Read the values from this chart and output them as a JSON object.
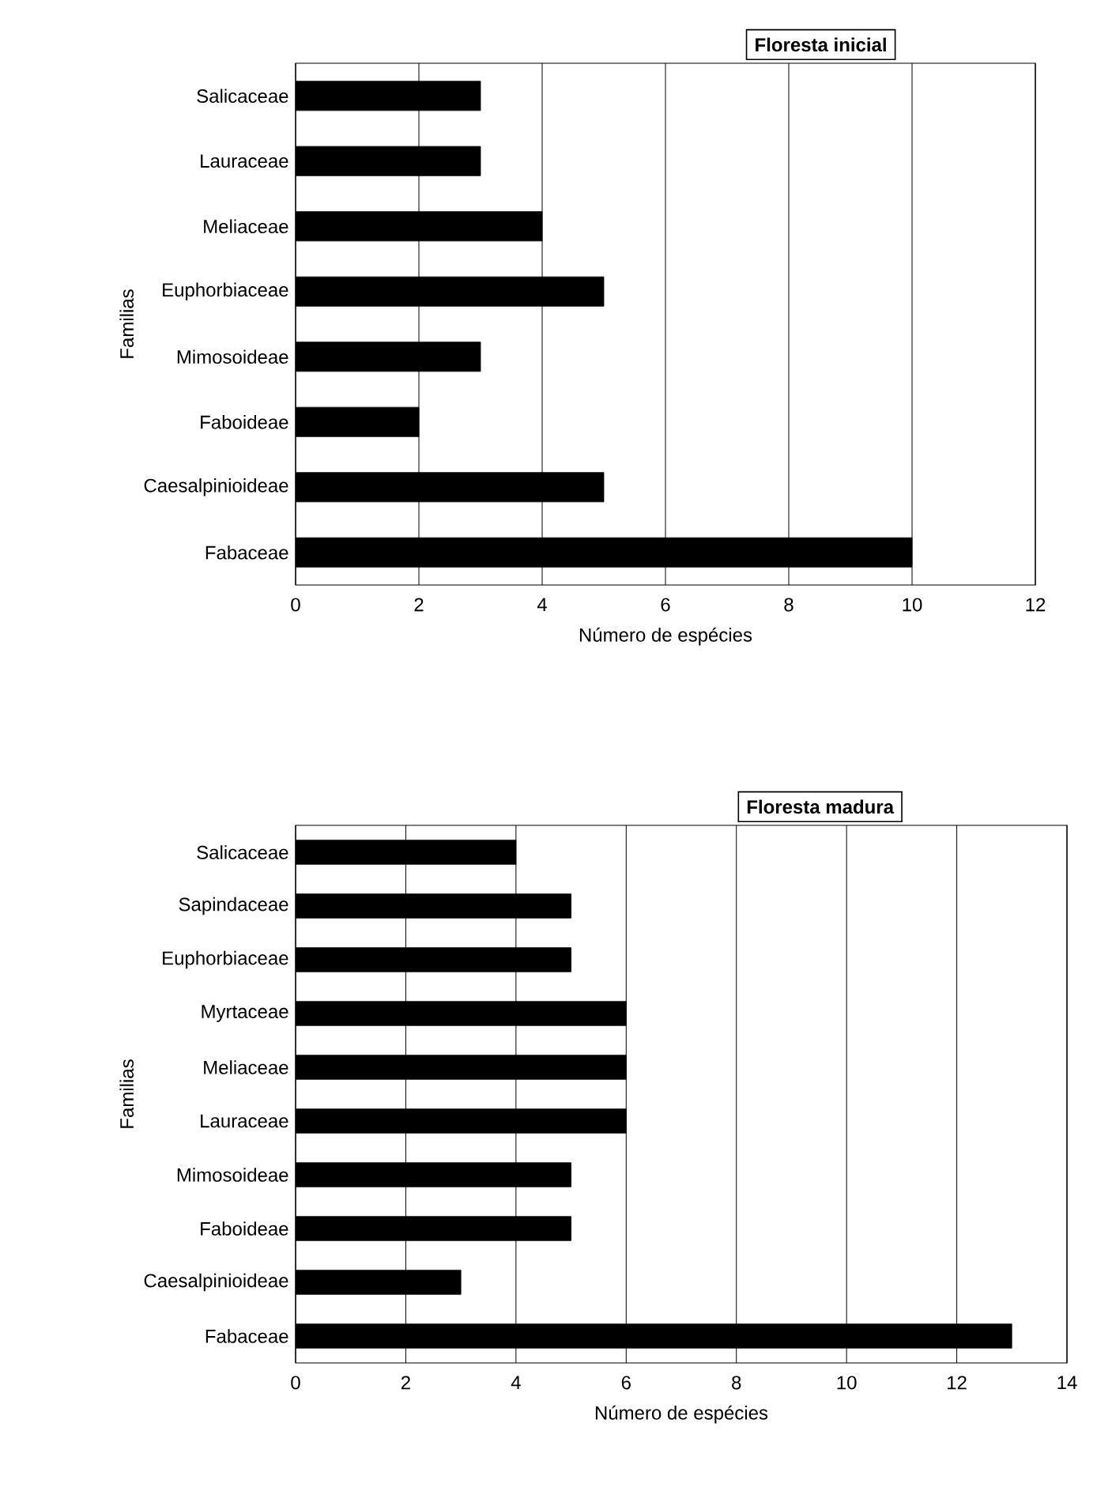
{
  "chart_data": [
    {
      "type": "bar",
      "orientation": "horizontal",
      "title": "Floresta inicial",
      "xlabel": "Número de espécies",
      "ylabel": "Familias",
      "categories": [
        "Salicaceae",
        "Lauraceae",
        "Meliaceae",
        "Euphorbiaceae",
        "Mimosoideae",
        "Faboideae",
        "Caesalpinioideae",
        "Fabaceae"
      ],
      "values": [
        3,
        3,
        4,
        5,
        3,
        2,
        5,
        10
      ],
      "color": "#000000",
      "xlim": [
        0,
        12
      ],
      "xticks": [
        0,
        2,
        4,
        6,
        8,
        10,
        12
      ],
      "grid": "x"
    },
    {
      "type": "bar",
      "orientation": "horizontal",
      "title": "Floresta madura",
      "xlabel": "Número de espécies",
      "ylabel": "Familias",
      "categories": [
        "Salicaceae",
        "Sapindaceae",
        "Euphorbiaceae",
        "Myrtaceae",
        "Meliaceae",
        "Lauraceae",
        "Mimosoideae",
        "Faboideae",
        "Caesalpinioideae",
        "Fabaceae"
      ],
      "values": [
        4,
        5,
        5,
        6,
        6,
        6,
        5,
        5,
        3,
        13
      ],
      "color": "#000000",
      "xlim": [
        0,
        14
      ],
      "xticks": [
        0,
        2,
        4,
        6,
        8,
        10,
        12,
        14
      ],
      "grid": "x"
    }
  ]
}
